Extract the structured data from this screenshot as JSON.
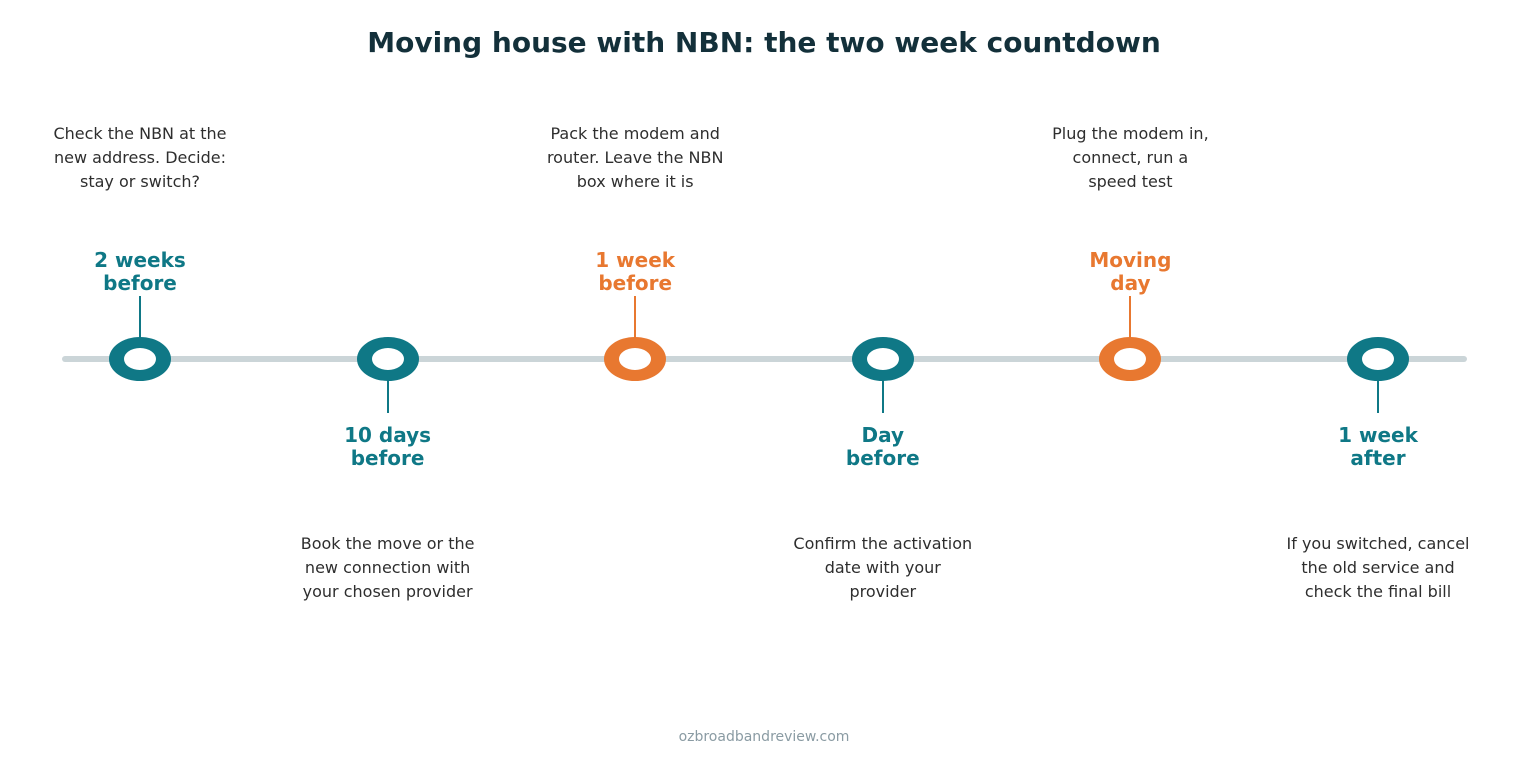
{
  "title": "Moving house with NBN: the two week countdown",
  "footer": "ozbroadbandreview.com",
  "colors": {
    "teal": "#0f7886",
    "orange": "#e87830",
    "axis": "#cbd5d8",
    "title": "#13303a"
  },
  "milestones": [
    {
      "label_lines": [
        "2 weeks",
        "before"
      ],
      "description_lines": [
        "Check the NBN at the",
        "new address. Decide:",
        "stay or switch?"
      ],
      "color": "teal",
      "side": "above"
    },
    {
      "label_lines": [
        "10 days",
        "before"
      ],
      "description_lines": [
        "Book the move or the",
        "new connection with",
        "your chosen provider"
      ],
      "color": "teal",
      "side": "below"
    },
    {
      "label_lines": [
        "1 week",
        "before"
      ],
      "description_lines": [
        "Pack the modem and",
        "router. Leave the NBN",
        "box where it is"
      ],
      "color": "orange",
      "side": "above"
    },
    {
      "label_lines": [
        "Day",
        "before"
      ],
      "description_lines": [
        "Confirm the activation",
        "date with your",
        "provider"
      ],
      "color": "teal",
      "side": "below"
    },
    {
      "label_lines": [
        "Moving",
        "day"
      ],
      "description_lines": [
        "Plug the modem in,",
        "connect, run a",
        "speed test"
      ],
      "color": "orange",
      "side": "above"
    },
    {
      "label_lines": [
        "1 week",
        "after"
      ],
      "description_lines": [
        "If you switched, cancel",
        "the old service and",
        "check the final bill"
      ],
      "color": "teal",
      "side": "below"
    }
  ]
}
